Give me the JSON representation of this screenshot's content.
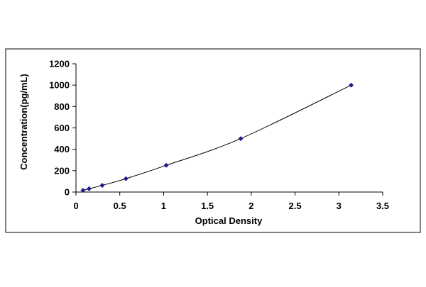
{
  "chart_data": {
    "type": "scatter",
    "title": "",
    "xlabel": "Optical Density",
    "ylabel": "Concentration(pg/mL)",
    "xlim": [
      0,
      3.5
    ],
    "ylim": [
      0,
      1200
    ],
    "x_ticks": [
      "0",
      "0.5",
      "1",
      "1.5",
      "2",
      "2.5",
      "3",
      "3.5"
    ],
    "y_ticks": [
      "0",
      "200",
      "400",
      "600",
      "800",
      "1000",
      "1200"
    ],
    "grid": false,
    "legend": false,
    "marker": "diamond",
    "marker_color": "#1a1a8c",
    "line_color": "#000000",
    "series": [
      {
        "name": "",
        "x": [
          0.08,
          0.15,
          0.3,
          0.57,
          1.03,
          1.88,
          3.14
        ],
        "y": [
          15.6,
          31.2,
          62.5,
          125,
          250,
          500,
          1000
        ]
      }
    ]
  }
}
